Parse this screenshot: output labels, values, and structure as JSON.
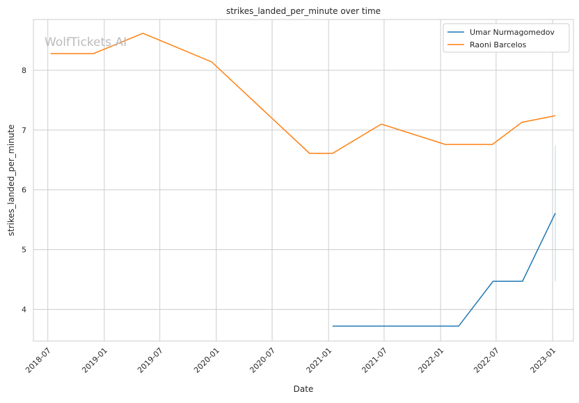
{
  "chart_data": {
    "type": "line",
    "title": "strikes_landed_per_minute over time",
    "xlabel": "Date",
    "ylabel": "strikes_landed_per_minute",
    "watermark": "WolfTickets.AI",
    "xlim": [
      "2018-05-15",
      "2023-03-10"
    ],
    "ylim": [
      3.47,
      8.85
    ],
    "x_ticks": [
      "2018-07",
      "2019-01",
      "2019-07",
      "2020-01",
      "2020-07",
      "2021-01",
      "2021-07",
      "2022-01",
      "2022-07",
      "2023-01"
    ],
    "y_ticks": [
      4,
      5,
      6,
      7,
      8
    ],
    "grid": true,
    "legend_position": "top-right",
    "series": [
      {
        "name": "Umar Nurmagomedov",
        "color": "#1f77b4",
        "x": [
          "2021-01-14",
          "2022-03-01",
          "2022-06-21",
          "2022-09-25",
          "2023-01-10"
        ],
        "y": [
          3.72,
          3.72,
          4.47,
          4.47,
          5.61
        ],
        "band": {
          "x": "2023-01-10",
          "low": 4.47,
          "high": 6.74
        }
      },
      {
        "name": "Raoni Barcelos",
        "color": "#ff7f0e",
        "x": [
          "2018-07-10",
          "2018-11-27",
          "2019-05-07",
          "2019-12-17",
          "2020-10-31",
          "2021-01-14",
          "2021-06-22",
          "2022-01-16",
          "2022-06-19",
          "2022-09-23",
          "2023-01-10"
        ],
        "y": [
          8.28,
          8.28,
          8.62,
          8.14,
          6.61,
          6.61,
          7.1,
          6.76,
          6.76,
          7.13,
          7.24
        ]
      }
    ]
  }
}
